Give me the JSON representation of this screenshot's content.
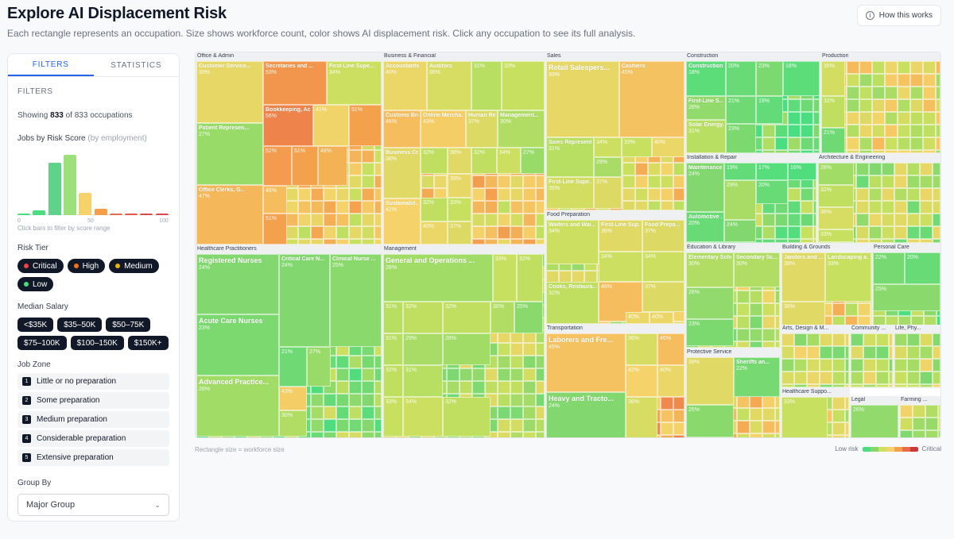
{
  "header": {
    "title": "Explore AI Displacement Risk",
    "subtitle": "Each rectangle represents an occupation. Size shows workforce count, color shows AI displacement risk. Click any occupation to see its full analysis.",
    "how_button": "How this works"
  },
  "sidebar": {
    "tabs": [
      "FILTERS",
      "STATISTICS"
    ],
    "section_label": "FILTERS",
    "showing_prefix": "Showing",
    "showing_count": "833",
    "showing_suffix": "of 833 occupations",
    "hist_title": "Jobs by Risk Score",
    "hist_sub": "(by employment)",
    "hist_ticks": [
      "0",
      "50",
      "100"
    ],
    "hist_hint": "Click bars to filter by score range",
    "risk_tier_title": "Risk Tier",
    "risk_tiers": [
      {
        "label": "Critical",
        "color": "#ef4444"
      },
      {
        "label": "High",
        "color": "#f97316"
      },
      {
        "label": "Medium",
        "color": "#eab308"
      },
      {
        "label": "Low",
        "color": "#4ade80"
      }
    ],
    "salary_title": "Median Salary",
    "salaries": [
      "<$35K",
      "$35–50K",
      "$50–75K",
      "$75–100K",
      "$100–150K",
      "$150K+"
    ],
    "zone_title": "Job Zone",
    "zones": [
      {
        "num": "1",
        "label": "Little or no preparation"
      },
      {
        "num": "2",
        "label": "Some preparation"
      },
      {
        "num": "3",
        "label": "Medium preparation"
      },
      {
        "num": "4",
        "label": "Considerable preparation"
      },
      {
        "num": "5",
        "label": "Extensive preparation"
      }
    ],
    "group_title": "Group By",
    "group_value": "Major Group"
  },
  "histogram": {
    "values": [
      2,
      6,
      65,
      75,
      28,
      8,
      1,
      1,
      1,
      1
    ],
    "colors": [
      "#4ade80",
      "#4ade80",
      "#5fd38a",
      "#9be07a",
      "#f5d36a",
      "#f59e4a",
      "#e26d4a",
      "#e05a4a",
      "#d94b4b",
      "#d94b4b"
    ]
  },
  "treemap": {
    "footnote": "Rectangle size = workforce size",
    "legend_low": "Low risk",
    "legend_high": "Critical",
    "legend_colors": [
      "#4ade80",
      "#86d86a",
      "#cfe05f",
      "#f5d36a",
      "#f4a14e",
      "#e96b4b",
      "#c93b3b"
    ],
    "groups": [
      {
        "name": "Office & Admin",
        "cells": [
          {
            "label": "Customer Service...",
            "pct": "39%"
          },
          {
            "label": "Secretaries and ...",
            "pct": "53%"
          },
          {
            "label": "First-Line Supe...",
            "pct": "34%"
          },
          {
            "label": "Bookkeeping, Ac...",
            "pct": "56%"
          },
          {
            "label": "",
            "pct": "41%"
          },
          {
            "label": "",
            "pct": "51%"
          },
          {
            "label": "Patient Represen...",
            "pct": "27%"
          },
          {
            "label": "",
            "pct": "52%"
          },
          {
            "label": "",
            "pct": "51%"
          },
          {
            "label": "",
            "pct": "48%"
          },
          {
            "label": "Office Clerks, G...",
            "pct": "47%"
          },
          {
            "label": "",
            "pct": "46%"
          },
          {
            "label": "",
            "pct": "51%"
          }
        ]
      },
      {
        "name": "Business & Financial",
        "cells": [
          {
            "label": "Accountants",
            "pct": "40%"
          },
          {
            "label": "Auditors",
            "pct": "36%"
          },
          {
            "label": "",
            "pct": "31%"
          },
          {
            "label": "",
            "pct": "33%"
          },
          {
            "label": "Customs Bro...",
            "pct": "46%"
          },
          {
            "label": "Online Mercha...",
            "pct": "43%"
          },
          {
            "label": "Human Resou...",
            "pct": "37%"
          },
          {
            "label": "Management...",
            "pct": "30%"
          },
          {
            "label": "Business Co...",
            "pct": "38%"
          },
          {
            "label": "",
            "pct": "32%"
          },
          {
            "label": "",
            "pct": "38%"
          },
          {
            "label": "",
            "pct": "32%"
          },
          {
            "label": "",
            "pct": "34%"
          },
          {
            "label": "",
            "pct": "27%"
          },
          {
            "label": "",
            "pct": "39%"
          },
          {
            "label": "Sustainabil...",
            "pct": "42%"
          },
          {
            "label": "",
            "pct": "32%"
          },
          {
            "label": "",
            "pct": "33%"
          },
          {
            "label": "",
            "pct": "40%"
          },
          {
            "label": "",
            "pct": "37%"
          }
        ]
      },
      {
        "name": "Sales",
        "cells": [
          {
            "label": "Retail Salespers...",
            "pct": "39%"
          },
          {
            "label": "Cashiers",
            "pct": "45%"
          },
          {
            "label": "Sales Represent...",
            "pct": "31%"
          },
          {
            "label": "",
            "pct": "34%"
          },
          {
            "label": "",
            "pct": "33%"
          },
          {
            "label": "",
            "pct": "40%"
          },
          {
            "label": "",
            "pct": "29%"
          },
          {
            "label": "First-Line Supe...",
            "pct": "35%"
          },
          {
            "label": "",
            "pct": "37%"
          }
        ]
      },
      {
        "name": "Construction",
        "cells": [
          {
            "label": "Construction...",
            "pct": "18%"
          },
          {
            "label": "",
            "pct": "20%"
          },
          {
            "label": "",
            "pct": "23%"
          },
          {
            "label": "",
            "pct": "18%"
          },
          {
            "label": "",
            "pct": "19%"
          },
          {
            "label": "First-Line S...",
            "pct": "26%"
          },
          {
            "label": "",
            "pct": "21%"
          },
          {
            "label": "Solar Energy...",
            "pct": "31%"
          },
          {
            "label": "",
            "pct": "23%"
          }
        ]
      },
      {
        "name": "Production",
        "cells": [
          {
            "label": "",
            "pct": "35%"
          },
          {
            "label": "",
            "pct": "32%"
          },
          {
            "label": "",
            "pct": "21%"
          }
        ]
      },
      {
        "name": "Installation & Repair",
        "cells": [
          {
            "label": "Maintenance...",
            "pct": "24%"
          },
          {
            "label": "",
            "pct": "19%"
          },
          {
            "label": "",
            "pct": "17%"
          },
          {
            "label": "",
            "pct": "16%"
          },
          {
            "label": "",
            "pct": "20%"
          },
          {
            "label": "",
            "pct": "29%"
          },
          {
            "label": "Automotive ...",
            "pct": "20%"
          },
          {
            "label": "",
            "pct": "24%"
          }
        ]
      },
      {
        "name": "Architecture & Engineering",
        "cells": [
          {
            "label": "",
            "pct": "28%"
          },
          {
            "label": "",
            "pct": "32%"
          },
          {
            "label": "",
            "pct": "36%"
          },
          {
            "label": "",
            "pct": "33%"
          }
        ]
      },
      {
        "name": "Food Preparation",
        "cells": [
          {
            "label": "Waiters and Wai...",
            "pct": "34%"
          },
          {
            "label": "First-Line Sup...",
            "pct": "38%"
          },
          {
            "label": "Food Prepa...",
            "pct": "37%"
          },
          {
            "label": "",
            "pct": "34%"
          },
          {
            "label": "",
            "pct": "34%"
          },
          {
            "label": "",
            "pct": "37%"
          },
          {
            "label": "Cooks, Restaura...",
            "pct": "32%"
          },
          {
            "label": "",
            "pct": "46%"
          },
          {
            "label": "",
            "pct": "40%"
          },
          {
            "label": "",
            "pct": "40%"
          }
        ]
      },
      {
        "name": "Healthcare Practitioners",
        "cells": [
          {
            "label": "Registered Nurses",
            "pct": "24%"
          },
          {
            "label": "Critical Care N...",
            "pct": "24%"
          },
          {
            "label": "Clinical Nurse ...",
            "pct": "25%"
          },
          {
            "label": "Acute Care Nurses",
            "pct": "23%"
          },
          {
            "label": "",
            "pct": "21%"
          },
          {
            "label": "",
            "pct": "27%"
          },
          {
            "label": "Advanced Practice...",
            "pct": "28%"
          },
          {
            "label": "",
            "pct": "43%"
          },
          {
            "label": "",
            "pct": "30%"
          }
        ]
      },
      {
        "name": "Management",
        "cells": [
          {
            "label": "General and Operations ...",
            "pct": "28%"
          },
          {
            "label": "",
            "pct": "33%"
          },
          {
            "label": "",
            "pct": "32%"
          },
          {
            "label": "",
            "pct": "31%"
          },
          {
            "label": "",
            "pct": "32%"
          },
          {
            "label": "",
            "pct": "32%"
          },
          {
            "label": "",
            "pct": "30%"
          },
          {
            "label": "",
            "pct": "25%"
          },
          {
            "label": "",
            "pct": "31%"
          },
          {
            "label": "",
            "pct": "29%"
          },
          {
            "label": "",
            "pct": "28%"
          },
          {
            "label": "",
            "pct": "32%"
          },
          {
            "label": "",
            "pct": "31%"
          },
          {
            "label": "",
            "pct": "33%"
          },
          {
            "label": "",
            "pct": "34%"
          },
          {
            "label": "",
            "pct": "32%"
          }
        ]
      },
      {
        "name": "Education & Library",
        "cells": [
          {
            "label": "Elementary Scho...",
            "pct": "30%"
          },
          {
            "label": "Secondary Sc...",
            "pct": "30%"
          },
          {
            "label": "",
            "pct": "26%"
          },
          {
            "label": "",
            "pct": "23%"
          }
        ]
      },
      {
        "name": "Building & Grounds",
        "cells": [
          {
            "label": "Janitors and ...",
            "pct": "38%"
          },
          {
            "label": "Landscaping a...",
            "pct": "33%"
          },
          {
            "label": "",
            "pct": "38%"
          }
        ]
      },
      {
        "name": "Personal Care",
        "cells": [
          {
            "label": "",
            "pct": "22%"
          },
          {
            "label": "",
            "pct": "20%"
          },
          {
            "label": "",
            "pct": "25%"
          }
        ]
      },
      {
        "name": "Transportation",
        "cells": [
          {
            "label": "Laborers and Fre...",
            "pct": "45%"
          },
          {
            "label": "",
            "pct": "36%"
          },
          {
            "label": "",
            "pct": "46%"
          },
          {
            "label": "",
            "pct": "42%"
          },
          {
            "label": "",
            "pct": "40%"
          },
          {
            "label": "Heavy and Tracto...",
            "pct": "24%"
          },
          {
            "label": "",
            "pct": "36%"
          }
        ]
      },
      {
        "name": "Protective Service",
        "cells": [
          {
            "label": "",
            "pct": "38%"
          },
          {
            "label": "Sheriffs an...",
            "pct": "22%"
          },
          {
            "label": "",
            "pct": "25%"
          }
        ]
      },
      {
        "name": "Arts, Design & M...",
        "cells": []
      },
      {
        "name": "Community ...",
        "cells": []
      },
      {
        "name": "Life, Phy...",
        "cells": []
      },
      {
        "name": "Healthcare Suppo...",
        "cells": [
          {
            "label": "",
            "pct": "33%"
          }
        ]
      },
      {
        "name": "Legal",
        "cells": [
          {
            "label": "",
            "pct": "26%"
          }
        ]
      },
      {
        "name": "Farming ...",
        "cells": []
      }
    ]
  }
}
